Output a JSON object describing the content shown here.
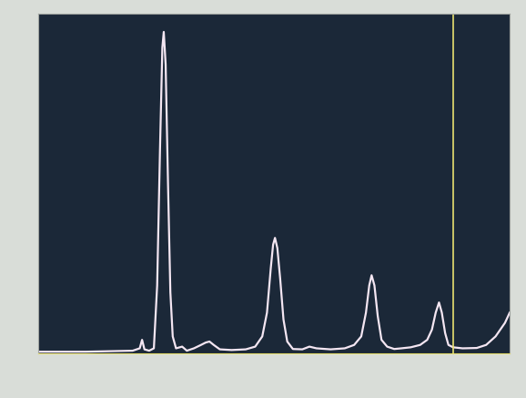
{
  "chart_data": {
    "type": "line",
    "x": [
      0,
      10,
      20,
      21.5,
      22.0,
      22.5,
      23.5,
      24.5,
      25.2,
      25.8,
      26.3,
      26.6,
      27.0,
      27.5,
      28.0,
      28.5,
      29.2,
      30.5,
      31.5,
      33,
      34.5,
      35.5,
      36.3,
      37.2,
      38.5,
      41,
      44,
      46,
      47.5,
      48.5,
      49.3,
      49.8,
      50.2,
      50.7,
      51.3,
      52,
      52.8,
      54,
      56,
      57.5,
      59,
      62,
      65,
      67,
      68.5,
      69.5,
      70.2,
      70.7,
      71.3,
      72,
      72.8,
      74,
      75.5,
      77,
      79,
      81,
      82.5,
      83.5,
      84.3,
      85.0,
      85.6,
      86.3,
      87,
      88,
      90,
      93,
      95,
      97,
      99,
      100
    ],
    "values": [
      0.5,
      0.5,
      0.8,
      1.5,
      4,
      1.2,
      0.8,
      1.5,
      20,
      60,
      90,
      94.6,
      85,
      50,
      18,
      5,
      1.5,
      2,
      0.8,
      1.5,
      2.5,
      3.2,
      3.5,
      2.5,
      1.2,
      1,
      1.2,
      2,
      5,
      12,
      25,
      32,
      34,
      31,
      22,
      10,
      3.5,
      1.3,
      1.2,
      2,
      1.5,
      1.2,
      1.5,
      2.5,
      5,
      12,
      20,
      23,
      20,
      11,
      4,
      2,
      1.3,
      1.5,
      1.8,
      2.5,
      4,
      7,
      12,
      15,
      12,
      6,
      2.5,
      1.8,
      1.5,
      1.6,
      2.5,
      5,
      9,
      12
    ],
    "color": "#f4e6f2",
    "cursor": 88,
    "xlim": [
      0,
      100
    ],
    "ylim": [
      0,
      100
    ],
    "tick_labels": false
  }
}
